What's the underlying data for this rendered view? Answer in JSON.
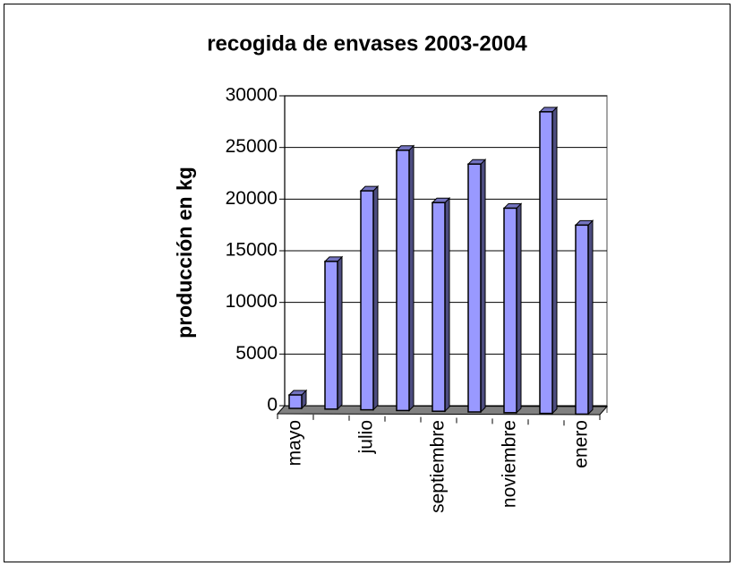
{
  "chart_data": {
    "type": "bar3d",
    "title": "recogida de envases 2003-2004",
    "y_label": "producción en kg",
    "categories": [
      "mayo",
      null,
      "julio",
      null,
      "septiembre",
      null,
      "noviembre",
      null,
      "enero"
    ],
    "values": [
      1300,
      14300,
      21200,
      25200,
      20200,
      24000,
      19800,
      29200,
      18300
    ],
    "color": "#9999ff",
    "ylim": [
      0,
      30000
    ],
    "yticks": [
      0,
      5000,
      10000,
      15000,
      20000,
      25000,
      30000
    ],
    "grid": true
  }
}
